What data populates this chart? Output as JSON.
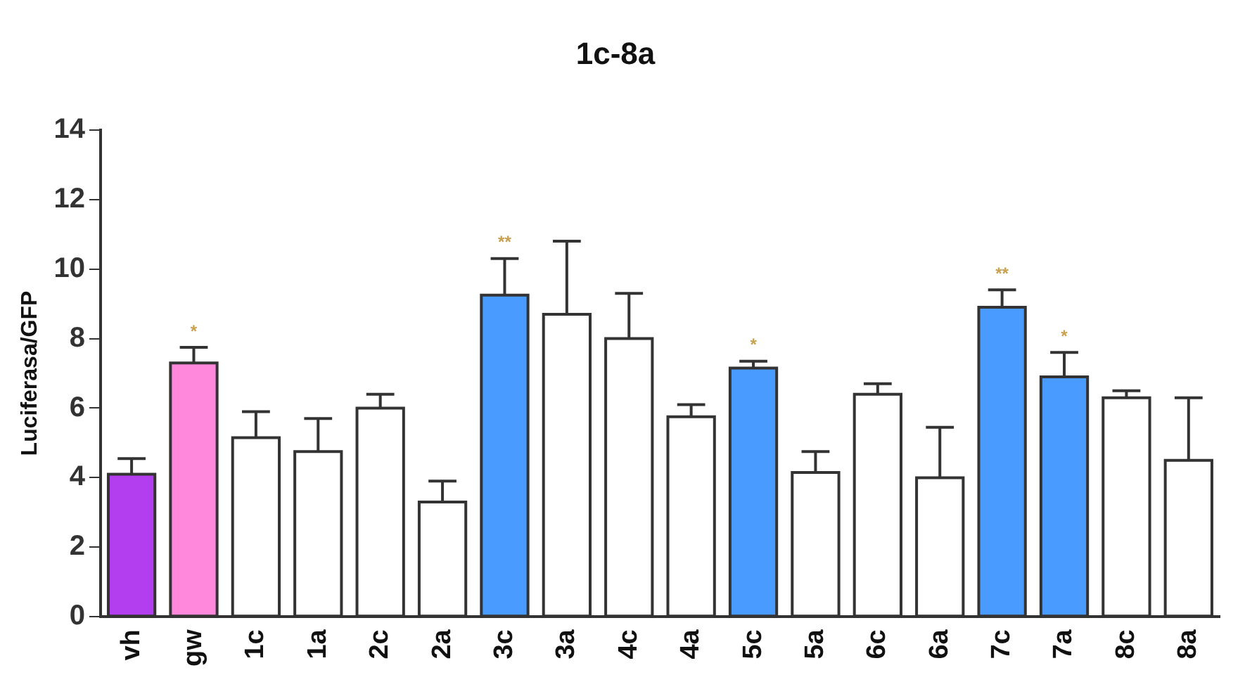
{
  "chart_data": {
    "type": "bar",
    "title": "1c-8a",
    "ylabel": "Luciferasa/GFP",
    "categories": [
      "vh",
      "gw",
      "1c",
      "1a",
      "2c",
      "2a",
      "3c",
      "3a",
      "4c",
      "4a",
      "5c",
      "5a",
      "6c",
      "6a",
      "7c",
      "7a",
      "8c",
      "8a"
    ],
    "values": [
      4.1,
      7.3,
      5.15,
      4.75,
      6.0,
      3.3,
      9.25,
      8.7,
      8.0,
      5.75,
      7.15,
      4.15,
      6.4,
      4.0,
      8.9,
      6.9,
      6.3,
      4.5
    ],
    "errors": [
      [
        4.1,
        4.55
      ],
      [
        7.3,
        7.75
      ],
      [
        5.15,
        5.9
      ],
      [
        4.75,
        5.7
      ],
      [
        6.0,
        6.4
      ],
      [
        3.3,
        3.9
      ],
      [
        9.25,
        10.3
      ],
      [
        8.7,
        10.8
      ],
      [
        8.0,
        9.3
      ],
      [
        5.75,
        6.1
      ],
      [
        7.15,
        7.35
      ],
      [
        4.15,
        4.75
      ],
      [
        6.4,
        6.7
      ],
      [
        4.0,
        5.45
      ],
      [
        8.9,
        9.4
      ],
      [
        6.9,
        7.6
      ],
      [
        6.3,
        6.5
      ],
      [
        4.5,
        6.3
      ]
    ],
    "colors": [
      "#b23ef0",
      "#ff88dd",
      "#ffffff",
      "#ffffff",
      "#ffffff",
      "#ffffff",
      "#4a9bff",
      "#ffffff",
      "#ffffff",
      "#ffffff",
      "#4a9bff",
      "#ffffff",
      "#ffffff",
      "#ffffff",
      "#4a9bff",
      "#4a9bff",
      "#ffffff",
      "#ffffff"
    ],
    "ylim": [
      0,
      14
    ],
    "yticks": [
      0,
      2,
      4,
      6,
      8,
      10,
      12,
      14
    ],
    "grid": false,
    "legend": false,
    "annotations": [
      {
        "text": "*",
        "x": "gw",
        "y": 7.3
      },
      {
        "text": "**",
        "x": "3c",
        "y": 9.25
      },
      {
        "text": "*",
        "x": "5c",
        "y": 7.15
      },
      {
        "text": "**",
        "x": "7c",
        "y": 8.9
      },
      {
        "text": "*",
        "x": "7a",
        "y": 6.9
      }
    ]
  }
}
